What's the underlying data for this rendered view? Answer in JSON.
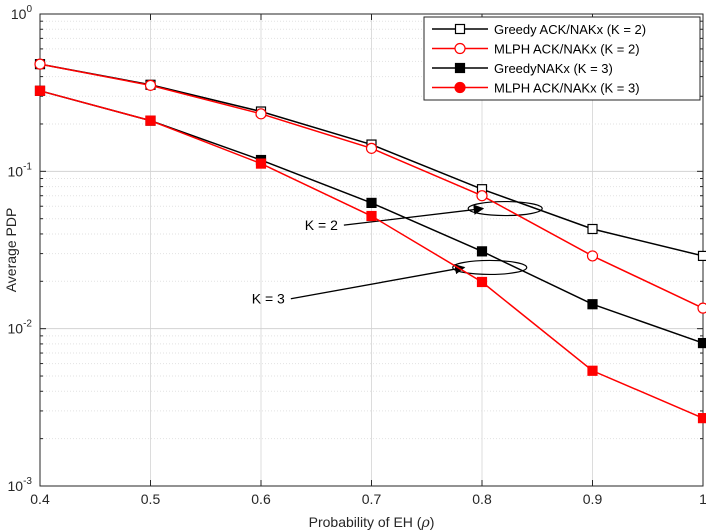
{
  "chart_data": {
    "type": "line",
    "xlabel_prefix": "Probability of EH (",
    "xlabel_symbol": "ρ",
    "xlabel_suffix": ")",
    "ylabel": "Average PDP",
    "yscale": "log",
    "xlim": [
      0.4,
      1.0
    ],
    "ylim": [
      0.001,
      1
    ],
    "grid": true,
    "x": [
      0.4,
      0.5,
      0.6,
      0.7,
      0.8,
      0.9,
      1.0
    ],
    "x_tick_labels": [
      "0.4",
      "0.5",
      "0.6",
      "0.7",
      "0.8",
      "0.9",
      "1"
    ],
    "y_ticks": [
      {
        "value": 1,
        "base": "10",
        "exp": "0"
      },
      {
        "value": 0.1,
        "base": "10",
        "exp": "-1"
      },
      {
        "value": 0.01,
        "base": "10",
        "exp": "-2"
      },
      {
        "value": 0.001,
        "base": "10",
        "exp": "-3"
      }
    ],
    "legend_position": "top-right",
    "series": [
      {
        "name": "Greedy ACK/NAKx (K = 2)",
        "color": "#000000",
        "marker": "square-open",
        "values": [
          0.48,
          0.355,
          0.24,
          0.148,
          0.077,
          0.043,
          0.029
        ]
      },
      {
        "name": "MLPH ACK/NAKx (K = 2)",
        "color": "#ff0000",
        "marker": "circle-open",
        "values": [
          0.48,
          0.352,
          0.232,
          0.14,
          0.07,
          0.029,
          0.0135
        ]
      },
      {
        "name": "GreedyNAKx (K = 3)",
        "color": "#000000",
        "marker": "square-filled",
        "values": [
          0.325,
          0.21,
          0.118,
          0.063,
          0.031,
          0.0143,
          0.0081
        ]
      },
      {
        "name": "MLPH ACK/NAKx (K = 3)",
        "color": "#ff0000",
        "marker": "circle-filled",
        "values": [
          0.325,
          0.21,
          0.112,
          0.052,
          0.0198,
          0.0054,
          0.0027
        ]
      }
    ],
    "annotations": [
      {
        "text": "K = 2",
        "ellipse_center": [
          0.821,
          0.058
        ],
        "arrow_start": [
          0.675,
          0.0455
        ],
        "arrow_end": [
          0.801,
          0.058
        ]
      },
      {
        "text": "K = 3",
        "ellipse_center": [
          0.807,
          0.0245
        ],
        "arrow_start": [
          0.627,
          0.0155
        ],
        "arrow_end": [
          0.784,
          0.0245
        ]
      }
    ]
  }
}
